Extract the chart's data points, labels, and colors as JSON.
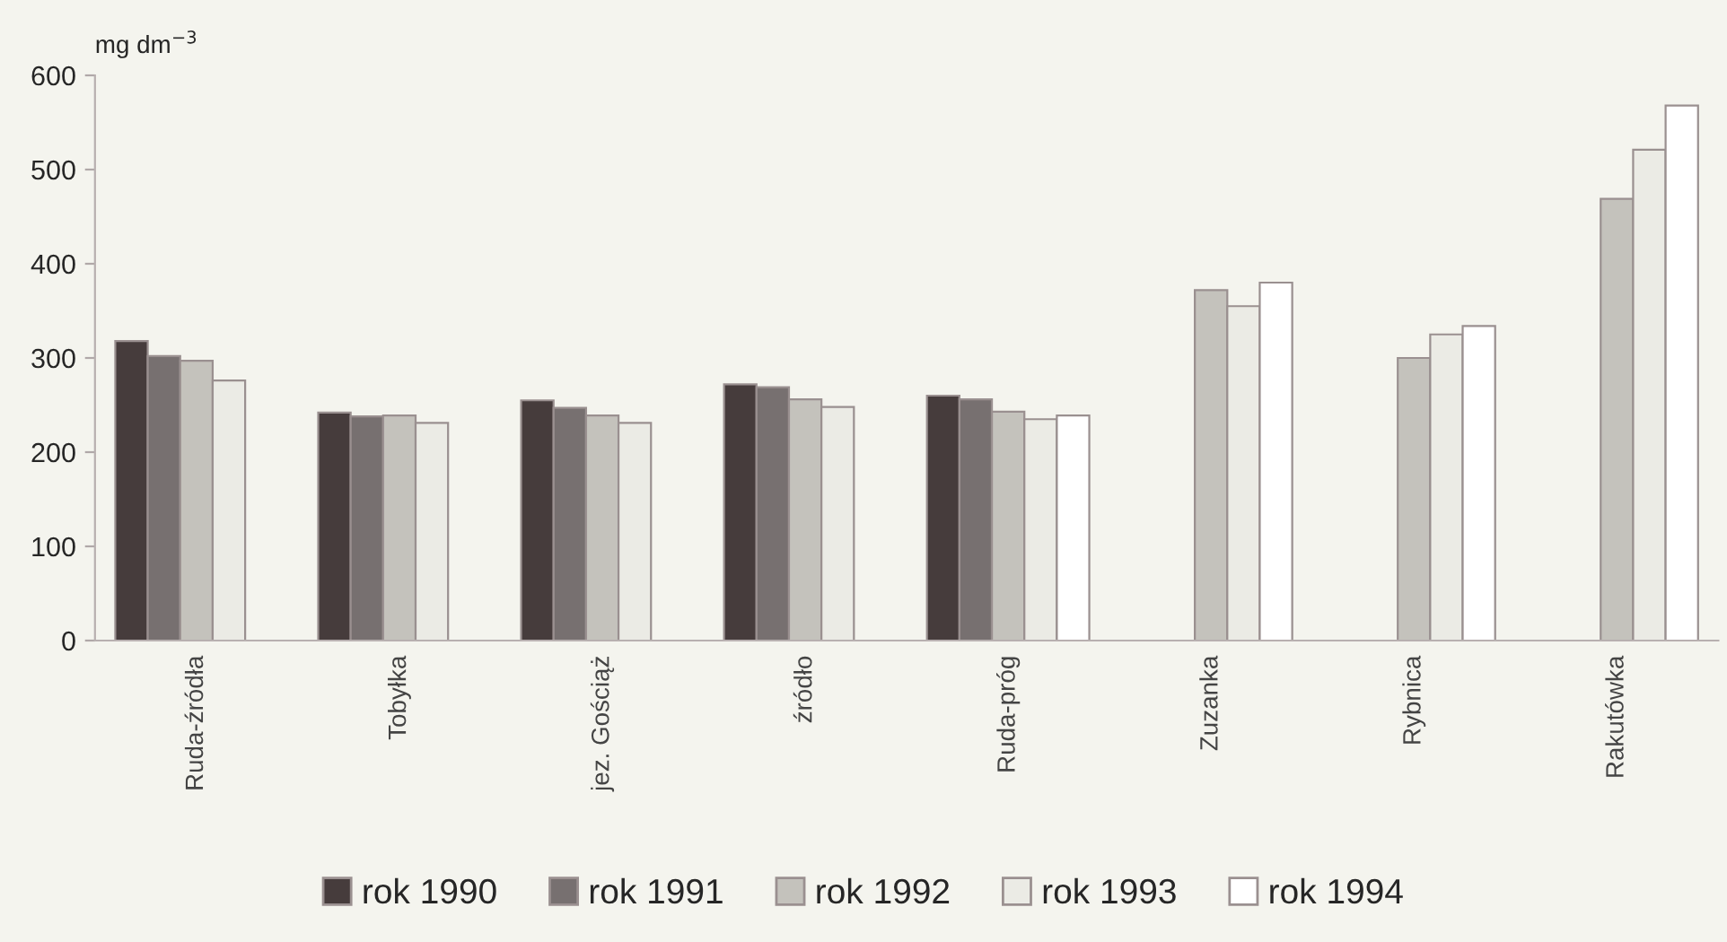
{
  "chart_data": {
    "type": "bar",
    "ylabel": "mg dm$^{−3}$",
    "categories": [
      "Ruda-źródła",
      "Tobyłka",
      "jez. Gościąż",
      "źródło",
      "Ruda-próg",
      "Zuzanka",
      "Rybnica",
      "Rakutówka"
    ],
    "series": [
      {
        "name": "rok 1990",
        "color": "#463c3c",
        "values": [
          318,
          242,
          255,
          272,
          260,
          null,
          null,
          null
        ]
      },
      {
        "name": "rok 1991",
        "color": "#777070",
        "values": [
          302,
          238,
          247,
          269,
          256,
          null,
          null,
          null
        ]
      },
      {
        "name": "rok 1992",
        "color": "#c4c2bc",
        "values": [
          297,
          239,
          239,
          256,
          243,
          372,
          300,
          469
        ]
      },
      {
        "name": "rok 1993",
        "color": "#ebebe5",
        "values": [
          276,
          231,
          231,
          248,
          235,
          355,
          325,
          521
        ]
      },
      {
        "name": "rok 1994",
        "color": "#ffffff",
        "values": [
          null,
          null,
          null,
          null,
          239,
          380,
          334,
          568
        ]
      }
    ],
    "ylim": [
      0,
      600
    ],
    "yticks": [
      0,
      100,
      200,
      300,
      400,
      500,
      600
    ],
    "grid": false,
    "legend": "bottom"
  }
}
